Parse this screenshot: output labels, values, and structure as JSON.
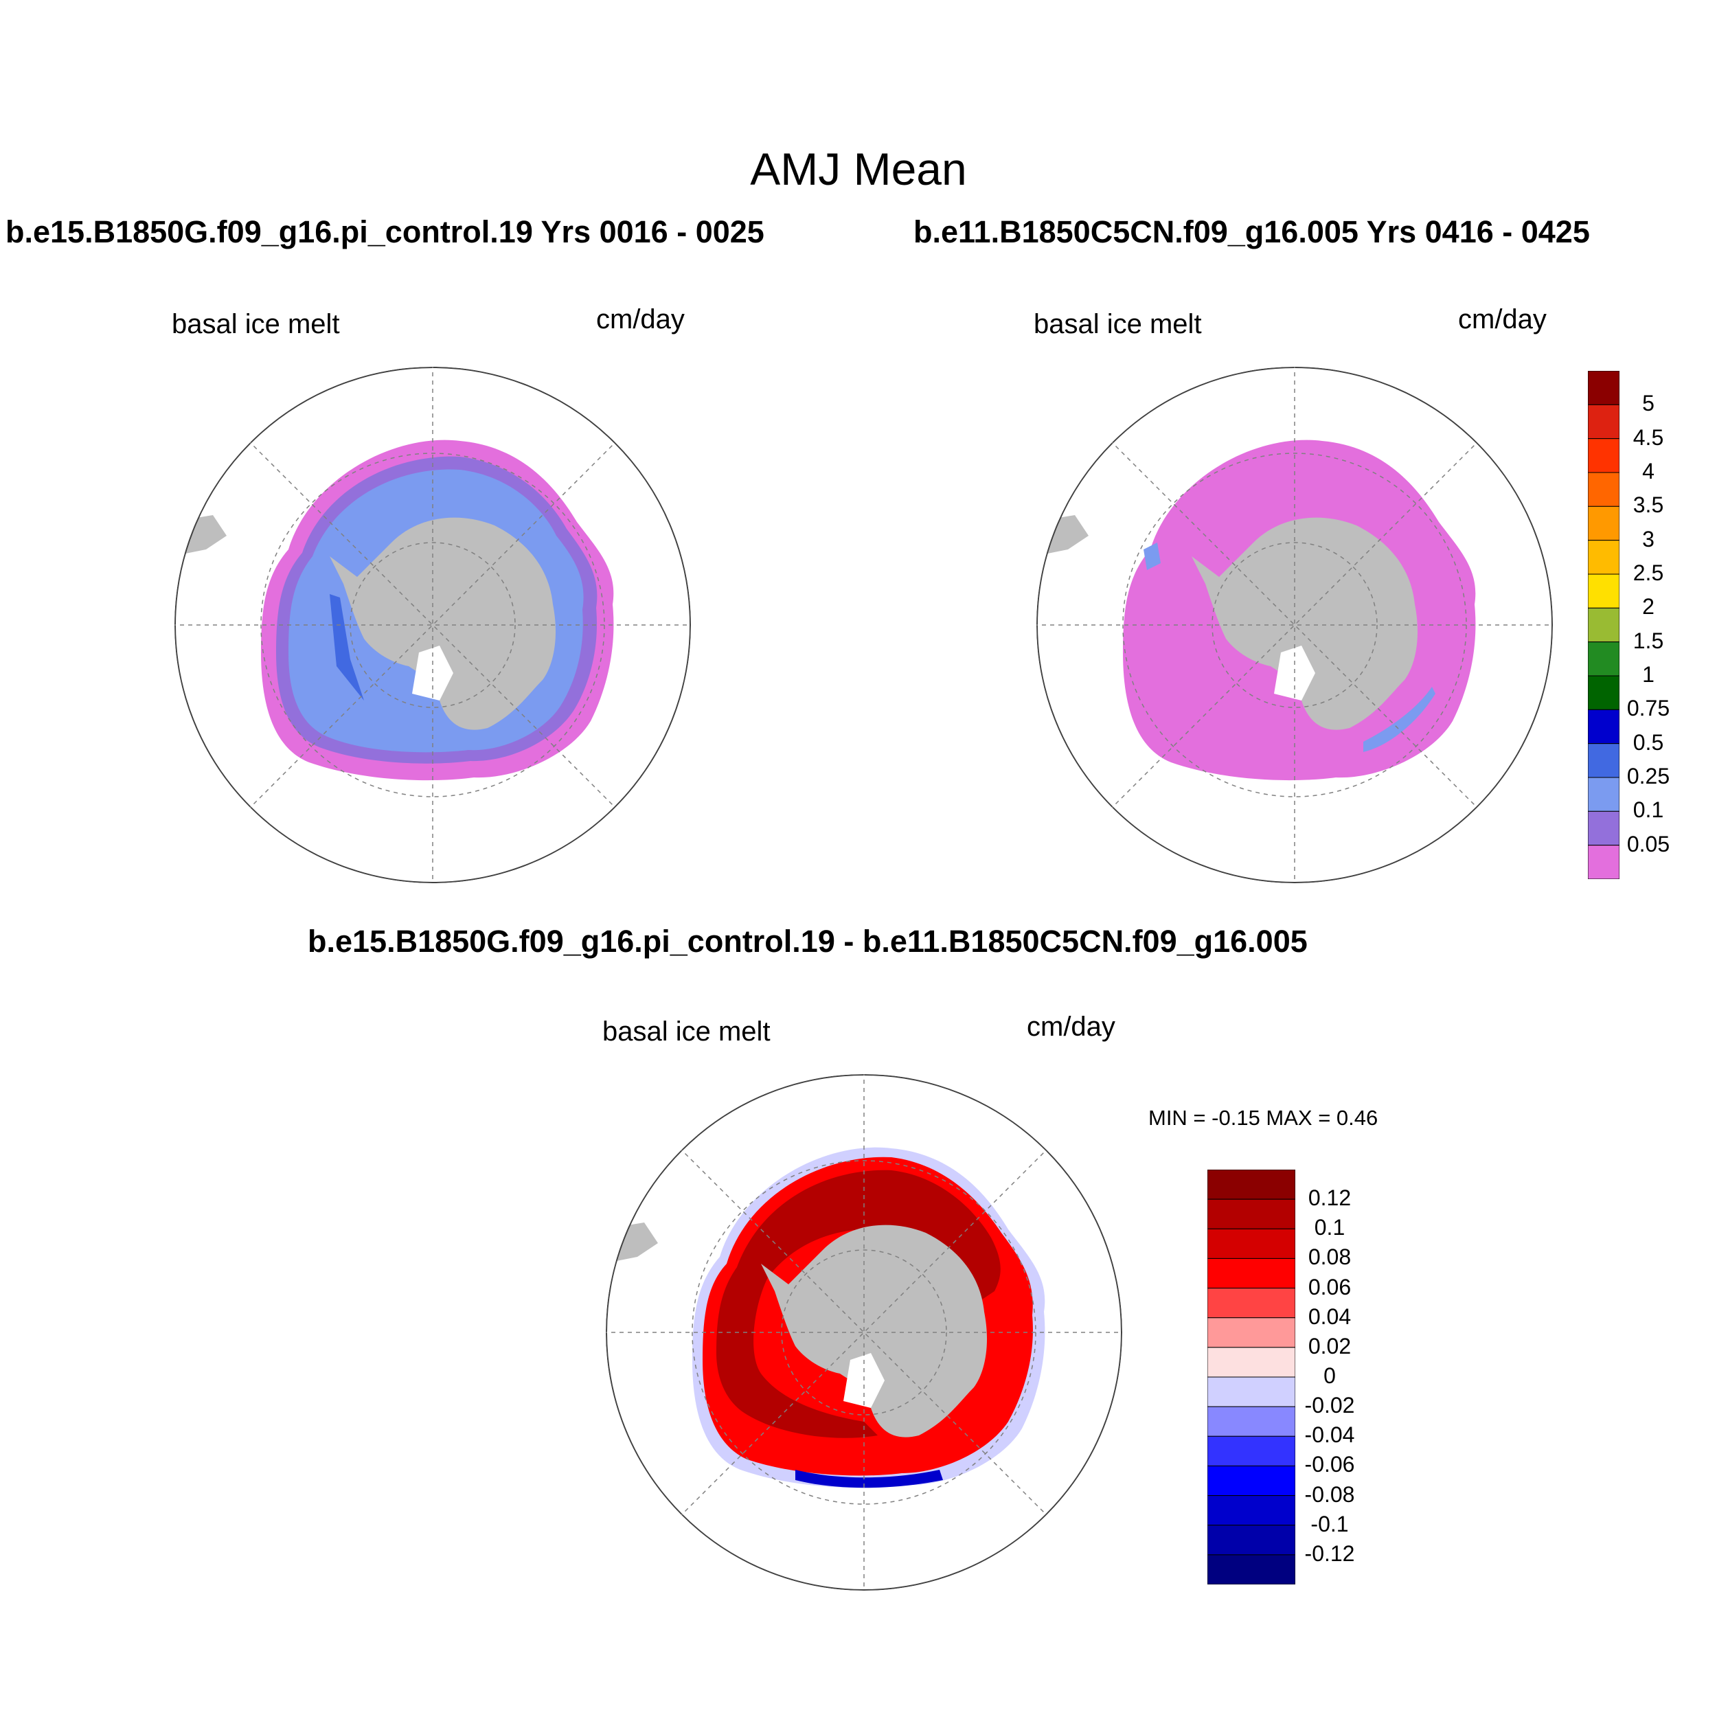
{
  "title": "AMJ Mean",
  "panels": [
    {
      "case_title": "b.e15.B1850G.f09_g16.pi_control.19  Yrs 0016 - 0025",
      "field": "basal ice melt",
      "units": "cm/day"
    },
    {
      "case_title": "b.e11.B1850C5CN.f09_g16.005  Yrs 0416 - 0425",
      "field": "basal ice melt",
      "units": "cm/day"
    },
    {
      "case_title": "b.e15.B1850G.f09_g16.pi_control.19 - b.e11.B1850C5CN.f09_g16.005",
      "field": "basal ice melt",
      "units": "cm/day",
      "min_label": "MIN =  -0.15 MAX =   0.46"
    }
  ],
  "colorbar_top": {
    "labels": [
      "5",
      "4.5",
      "4",
      "3.5",
      "3",
      "2.5",
      "2",
      "1.5",
      "1",
      "0.75",
      "0.5",
      "0.25",
      "0.1",
      "0.05"
    ],
    "colors": [
      "#8b0000",
      "#dd2211",
      "#ff3300",
      "#ff6600",
      "#ff9900",
      "#ffbb00",
      "#ffe000",
      "#99bb33",
      "#228b22",
      "#006400",
      "#0000cd",
      "#4169e1",
      "#7b9bf0",
      "#9370db",
      "#e36fdd"
    ]
  },
  "colorbar_diff": {
    "labels": [
      "0.12",
      "0.1",
      "0.08",
      "0.06",
      "0.04",
      "0.02",
      "0",
      "-0.02",
      "-0.04",
      "-0.06",
      "-0.08",
      "-0.1",
      "-0.12"
    ],
    "colors": [
      "#8b0000",
      "#b30000",
      "#d40000",
      "#ff0000",
      "#ff4444",
      "#ff9999",
      "#fde0e0",
      "#d0d0ff",
      "#8888ff",
      "#3333ff",
      "#0000ff",
      "#0000cc",
      "#0000aa",
      "#000080"
    ]
  },
  "colors": {
    "land": "#bebebe",
    "grid": "#808080",
    "ice_shelf": "#ffffff"
  }
}
